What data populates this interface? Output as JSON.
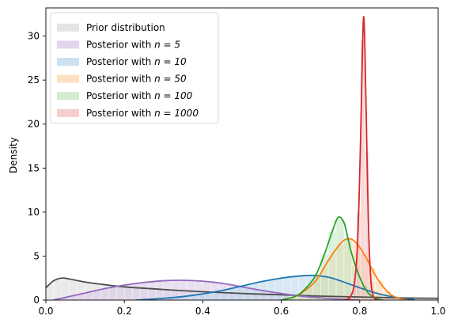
{
  "chart_data": {
    "type": "area",
    "title": "",
    "xlabel": "",
    "ylabel": "Density",
    "xlim": [
      0.0,
      1.0
    ],
    "ylim": [
      0,
      33.2
    ],
    "xticks": [
      "0.0",
      "0.2",
      "0.4",
      "0.6",
      "0.8",
      "1.0"
    ],
    "xtick_values": [
      0.0,
      0.2,
      0.4,
      0.6,
      0.8,
      1.0
    ],
    "yticks": [
      "0",
      "5",
      "10",
      "15",
      "20",
      "25",
      "30"
    ],
    "ytick_values": [
      0,
      5,
      10,
      15,
      20,
      25,
      30
    ],
    "grid": false,
    "legend_position": "upper-left",
    "series": [
      {
        "name": "Prior distribution",
        "line_color": "#4d4d4d",
        "fill_color": "#d9d9d9",
        "x": [
          0.0,
          0.02,
          0.04,
          0.06,
          0.1,
          0.15,
          0.2,
          0.3,
          0.4,
          0.5,
          0.6,
          0.7,
          0.8,
          0.9,
          1.0
        ],
        "y": [
          1.4,
          2.2,
          2.5,
          2.4,
          2.05,
          1.75,
          1.5,
          1.2,
          0.95,
          0.75,
          0.6,
          0.45,
          0.35,
          0.25,
          0.2
        ]
      },
      {
        "name": "Posterior with n=5",
        "label_prefix": "Posterior with ",
        "label_math": "n = 5",
        "line_color": "#9467bd",
        "fill_color": "#d5c5e6",
        "x": [
          0.02,
          0.05,
          0.1,
          0.15,
          0.2,
          0.25,
          0.3,
          0.35,
          0.4,
          0.45,
          0.5,
          0.55,
          0.6,
          0.65,
          0.7,
          0.75,
          0.8
        ],
        "y": [
          0.02,
          0.3,
          0.8,
          1.3,
          1.7,
          2.0,
          2.2,
          2.25,
          2.15,
          1.9,
          1.5,
          1.1,
          0.75,
          0.45,
          0.25,
          0.1,
          0.0
        ]
      },
      {
        "name": "Posterior with n=10",
        "label_prefix": "Posterior with ",
        "label_math": "n = 10",
        "line_color": "#1f77b4",
        "fill_color": "#b7d3ea",
        "x": [
          0.23,
          0.3,
          0.35,
          0.4,
          0.45,
          0.5,
          0.55,
          0.6,
          0.65,
          0.68,
          0.72,
          0.75,
          0.8,
          0.85,
          0.9,
          0.94
        ],
        "y": [
          0.0,
          0.2,
          0.4,
          0.7,
          1.1,
          1.6,
          2.1,
          2.5,
          2.75,
          2.8,
          2.6,
          2.2,
          1.4,
          0.7,
          0.25,
          0.05
        ]
      },
      {
        "name": "Posterior with n=50",
        "label_prefix": "Posterior with ",
        "label_math": "n = 50",
        "line_color": "#ff7f0e",
        "fill_color": "#ffd1a8",
        "x": [
          0.6,
          0.64,
          0.68,
          0.7,
          0.72,
          0.74,
          0.76,
          0.78,
          0.8,
          0.82,
          0.84,
          0.86,
          0.88,
          0.9,
          0.92
        ],
        "y": [
          0.0,
          0.5,
          1.8,
          3.0,
          4.5,
          5.8,
          6.8,
          6.9,
          6.0,
          4.5,
          2.8,
          1.5,
          0.6,
          0.2,
          0.02
        ]
      },
      {
        "name": "Posterior with n=100",
        "label_prefix": "Posterior with ",
        "label_math": "n = 100",
        "line_color": "#2ca02c",
        "fill_color": "#bfe3bf",
        "x": [
          0.6,
          0.64,
          0.67,
          0.69,
          0.71,
          0.73,
          0.745,
          0.76,
          0.77,
          0.78,
          0.8,
          0.82,
          0.84,
          0.86
        ],
        "y": [
          0.0,
          0.5,
          1.7,
          3.0,
          5.2,
          7.8,
          9.4,
          8.8,
          7.0,
          5.2,
          2.6,
          0.9,
          0.2,
          0.0
        ]
      },
      {
        "name": "Posterior with n=1000",
        "label_prefix": "Posterior with ",
        "label_math": "n = 1000",
        "line_color": "#d62728",
        "fill_color": "#f2b9b9",
        "x": [
          0.76,
          0.775,
          0.785,
          0.792,
          0.798,
          0.803,
          0.807,
          0.81,
          0.813,
          0.817,
          0.822,
          0.828,
          0.835,
          0.845
        ],
        "y": [
          0.0,
          0.3,
          1.5,
          4.5,
          11.0,
          20.0,
          28.5,
          32.2,
          29.0,
          20.0,
          9.0,
          2.5,
          0.4,
          0.0
        ]
      }
    ]
  }
}
